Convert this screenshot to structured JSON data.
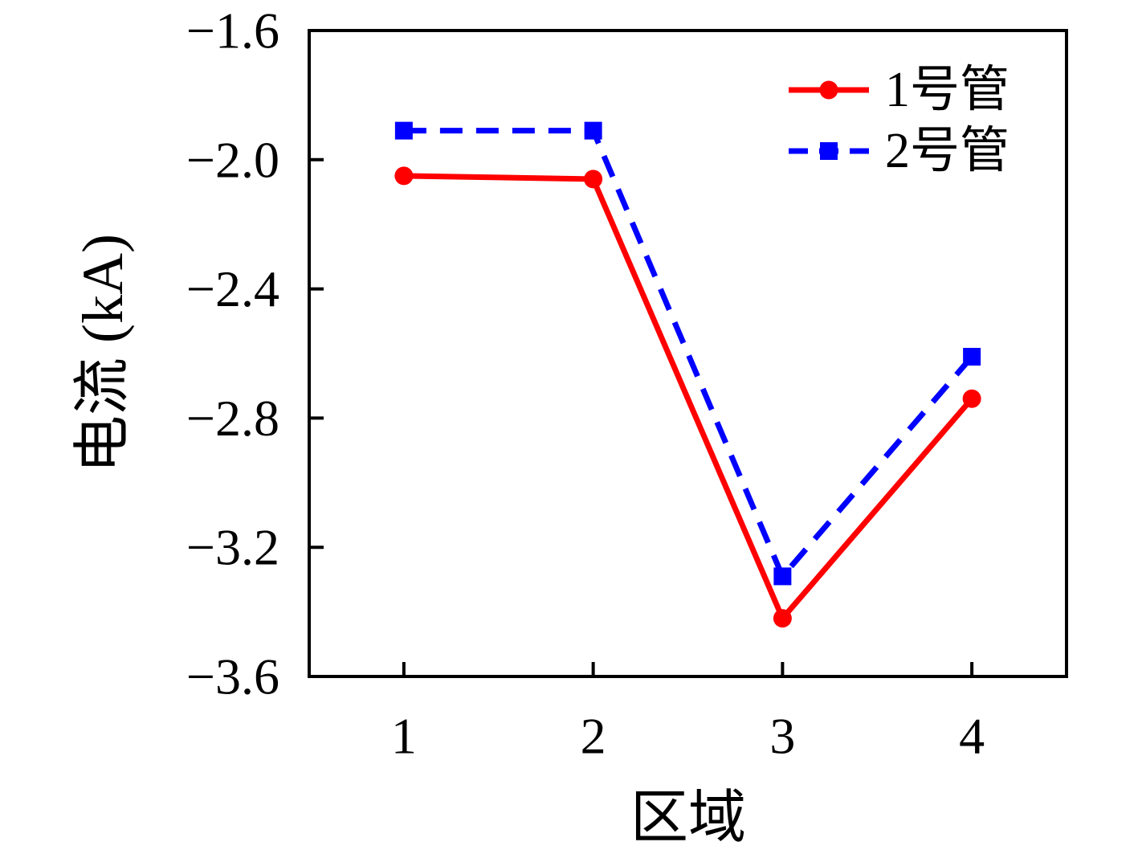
{
  "figure": {
    "background_color": "#ffffff",
    "frame_color": "#000000"
  },
  "chart_data": {
    "type": "line",
    "x": [
      1,
      2,
      3,
      4
    ],
    "series": [
      {
        "name": "1号管",
        "color": "#ff0000",
        "line_style": "solid",
        "marker": "circle",
        "values": [
          -2.05,
          -2.06,
          -3.42,
          -2.74
        ]
      },
      {
        "name": "2号管",
        "color": "#0000ff",
        "line_style": "dashed",
        "marker": "square",
        "values": [
          -1.91,
          -1.91,
          -3.29,
          -2.61
        ]
      }
    ],
    "title": "",
    "xlabel": "区域",
    "ylabel": "电流 (kA)",
    "xlim": [
      0.5,
      4.5
    ],
    "ylim": [
      -3.6,
      -1.6
    ],
    "xticks": [
      1,
      2,
      3,
      4
    ],
    "xtick_labels": [
      "1",
      "2",
      "3",
      "4"
    ],
    "yticks": [
      -1.6,
      -2.0,
      -2.4,
      -2.8,
      -3.2,
      -3.6
    ],
    "ytick_labels": [
      "−1.6",
      "−2.0",
      "−2.4",
      "−2.8",
      "−3.2",
      "−3.6"
    ],
    "grid": false,
    "frame": "box",
    "tick_direction": "in",
    "legend_position": "top-right",
    "legend_frame": false
  }
}
